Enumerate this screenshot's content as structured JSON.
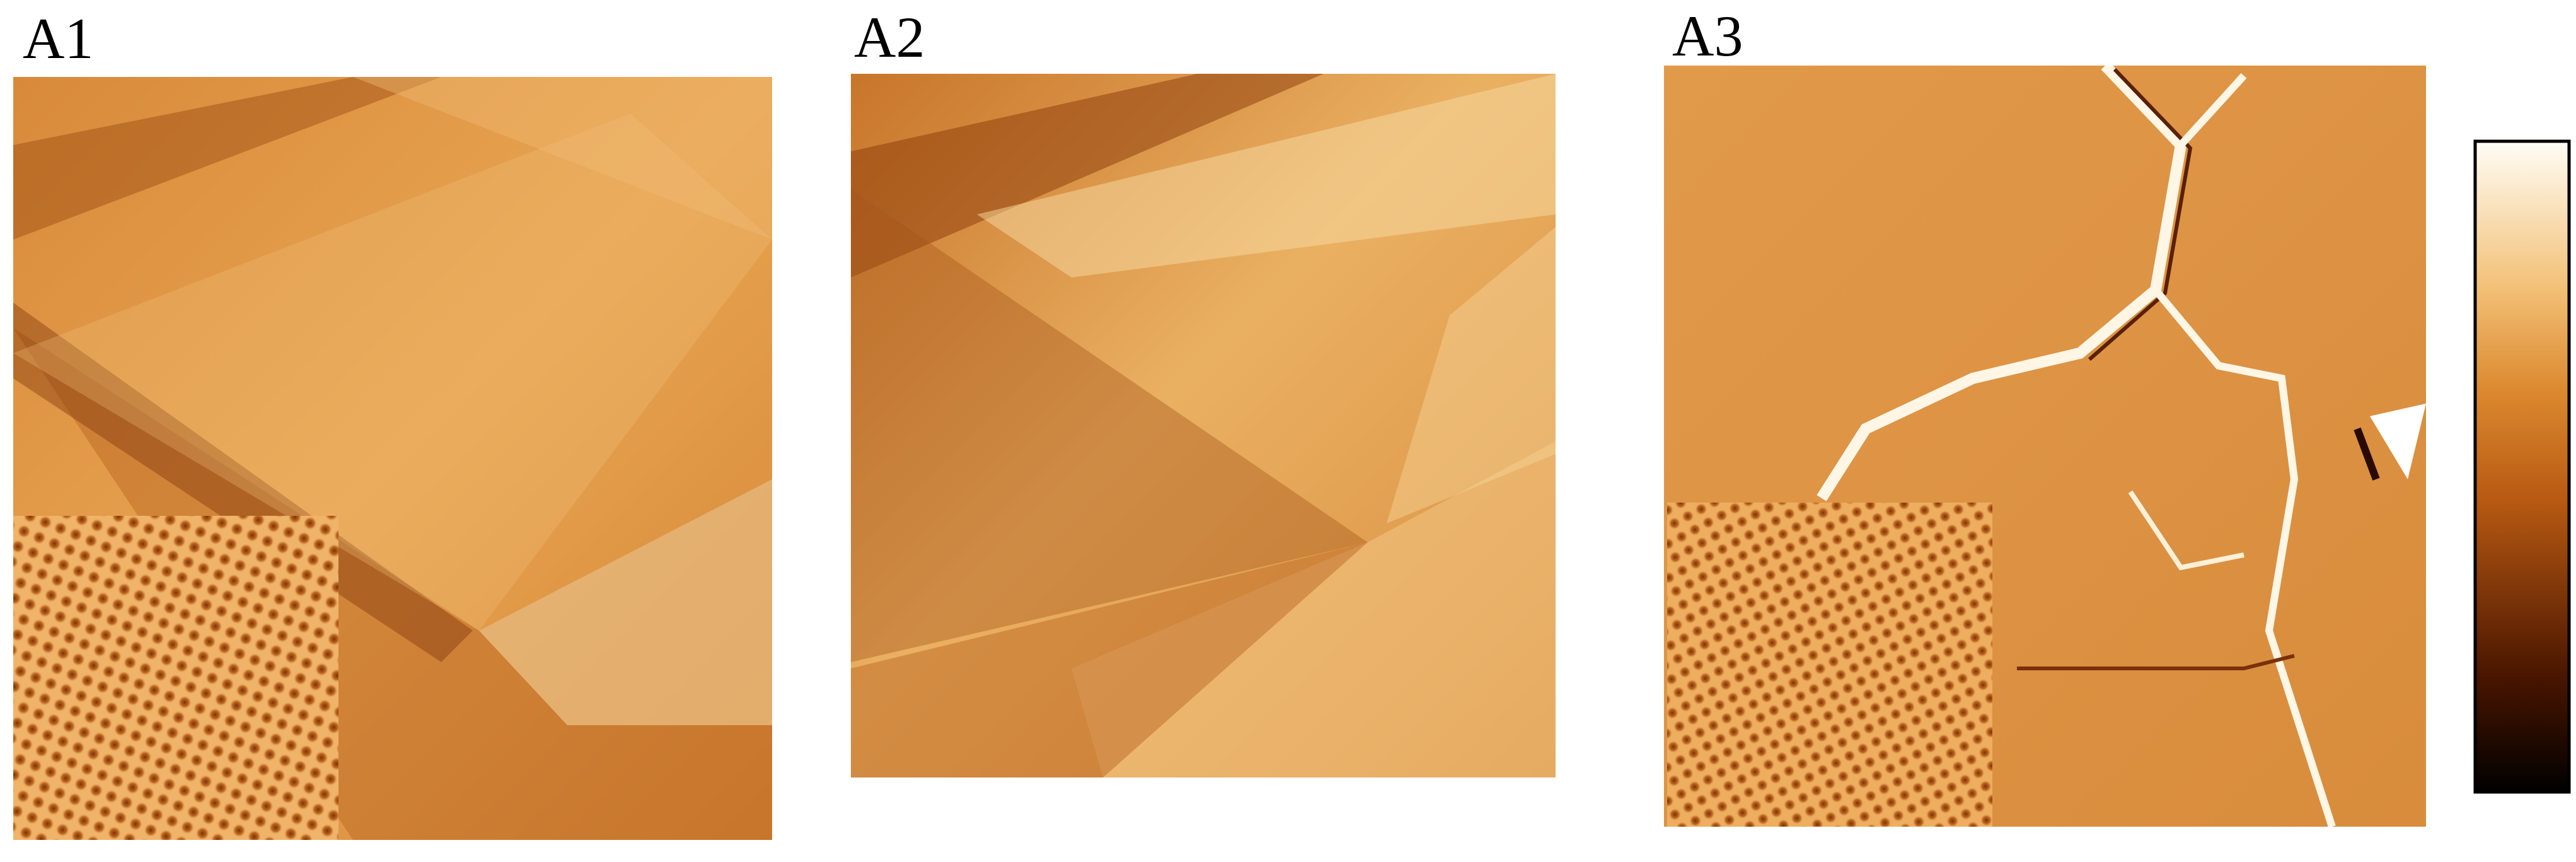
{
  "panels": [
    {
      "label": "A1"
    },
    {
      "label": "A2"
    },
    {
      "label": "A3"
    }
  ]
}
